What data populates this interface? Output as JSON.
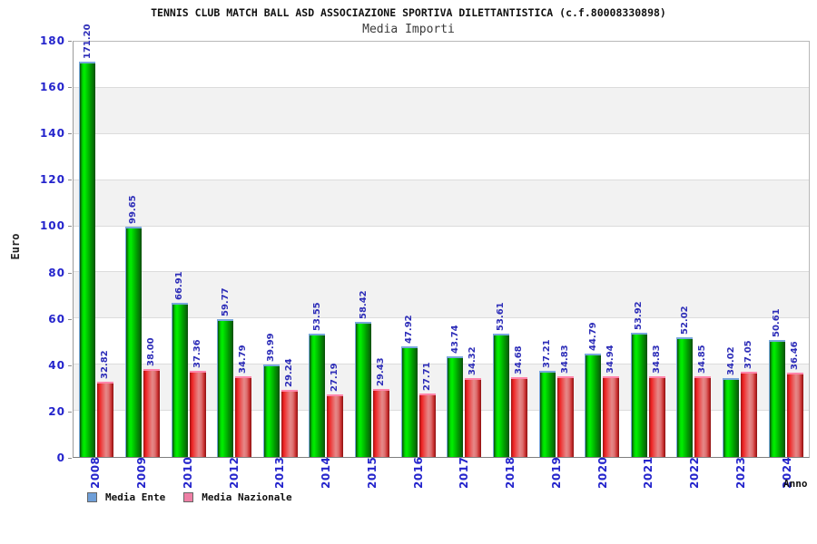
{
  "header": {
    "title": "TENNIS CLUB MATCH BALL ASD ASSOCIAZIONE SPORTIVA DILETTANTISTICA (c.f.80008330898)",
    "subtitle": "Media Importi"
  },
  "axes": {
    "y_label": "Euro",
    "x_label": "Anno",
    "y_ticks": [
      0,
      20,
      40,
      60,
      80,
      100,
      120,
      140,
      160,
      180
    ]
  },
  "legend": {
    "items": [
      {
        "label": "Media Ente",
        "swatch_color": "#6f9fd8"
      },
      {
        "label": "Media Nazionale",
        "swatch_color": "#ee7fa5"
      }
    ]
  },
  "colors": {
    "label_blue": "#2424cc",
    "value_label_blue": "#2d2db8",
    "band_gray": "#f2f2f2",
    "band_white": "#ffffff",
    "green_bar_mid": "#00ef00",
    "green_bar_edge": "#0a4d0a",
    "green_bar_cap": "#79a7dc",
    "red_bar_mid": "#e68989",
    "red_bar_edge": "#9e1313",
    "red_bar_cap": "#ff86ab"
  },
  "chart_data": {
    "type": "bar",
    "title": "TENNIS CLUB MATCH BALL ASD ASSOCIAZIONE SPORTIVA DILETTANTISTICA (c.f.80008330898)",
    "subtitle": "Media Importi",
    "xlabel": "Anno",
    "ylabel": "Euro",
    "ylim": [
      0,
      180
    ],
    "ytick_step": 20,
    "grid": "horizontal alternating bands, gridline every 20",
    "legend_position": "bottom-left",
    "categories": [
      "2008",
      "2009",
      "2010",
      "2012",
      "2013",
      "2014",
      "2015",
      "2016",
      "2017",
      "2018",
      "2019",
      "2020",
      "2021",
      "2022",
      "2023",
      "2024"
    ],
    "series": [
      {
        "name": "Media Ente",
        "values": [
          171.2,
          99.65,
          66.91,
          59.77,
          39.99,
          53.55,
          58.42,
          47.92,
          43.74,
          53.61,
          37.21,
          44.79,
          53.92,
          52.02,
          34.02,
          50.61
        ],
        "labels": [
          "171.20",
          "99.65",
          "66.91",
          "59.77",
          "39.99",
          "53.55",
          "58.42",
          "47.92",
          "43.74",
          "53.61",
          "37.21",
          "44.79",
          "53.92",
          "52.02",
          "34.02",
          "50.61"
        ]
      },
      {
        "name": "Media Nazionale",
        "values": [
          32.82,
          38.0,
          37.36,
          34.79,
          29.24,
          27.19,
          29.43,
          27.71,
          34.32,
          34.68,
          34.83,
          34.94,
          34.83,
          34.85,
          37.05,
          36.46
        ],
        "labels": [
          "32.82",
          "38.00",
          "37.36",
          "34.79",
          "29.24",
          "27.19",
          "29.43",
          "27.71",
          "34.32",
          "34.68",
          "34.83",
          "34.94",
          "34.83",
          "34.85",
          "37.05",
          "36.46"
        ]
      }
    ]
  }
}
